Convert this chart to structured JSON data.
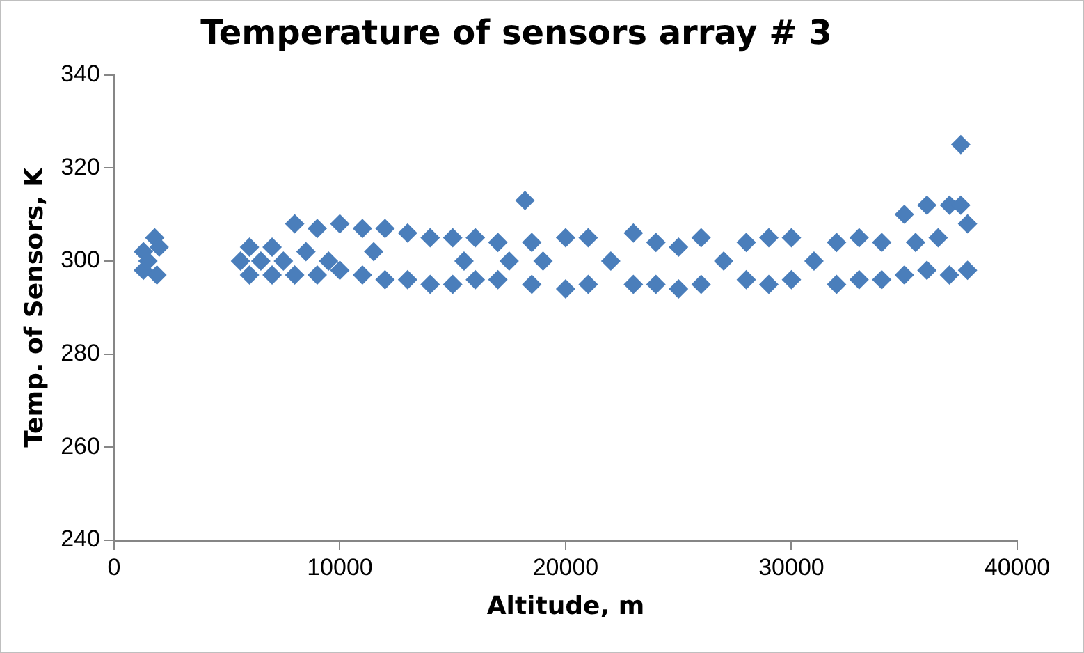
{
  "chart_data": {
    "type": "scatter",
    "title": "Temperature of sensors array # 3",
    "xlabel": "Altitude, m",
    "ylabel": "Temp. of Sensors, K",
    "xlim": [
      0,
      40000
    ],
    "xticks": [
      0,
      10000,
      20000,
      30000,
      40000
    ],
    "ylim": [
      240,
      340
    ],
    "yticks": [
      240,
      260,
      280,
      300,
      320,
      340
    ],
    "marker": "diamond",
    "legend": false,
    "series": [
      {
        "color": "#4a7ebb",
        "x": [
          1300,
          1300,
          1500,
          1800,
          1900,
          2000,
          5600,
          6000,
          6000,
          6500,
          7000,
          7000,
          7500,
          8000,
          8000,
          8500,
          9000,
          9000,
          9500,
          10000,
          10000,
          11000,
          11000,
          11500,
          12000,
          12000,
          13000,
          13000,
          14000,
          14000,
          15000,
          15000,
          15500,
          16000,
          16000,
          17000,
          17000,
          17500,
          18200,
          18500,
          18500,
          19000,
          20000,
          20000,
          21000,
          21000,
          22000,
          23000,
          23000,
          24000,
          24000,
          25000,
          25000,
          26000,
          26000,
          27000,
          28000,
          28000,
          29000,
          29000,
          30000,
          30000,
          31000,
          32000,
          32000,
          33000,
          33000,
          34000,
          34000,
          35000,
          35000,
          35500,
          36000,
          36000,
          36500,
          37000,
          37000,
          37500,
          37500,
          37800,
          37800
        ],
        "values": [
          302,
          298,
          300,
          305,
          297,
          303,
          300,
          303,
          297,
          300,
          303,
          297,
          300,
          308,
          297,
          302,
          307,
          297,
          300,
          308,
          298,
          307,
          297,
          302,
          307,
          296,
          306,
          296,
          305,
          295,
          305,
          295,
          300,
          305,
          296,
          304,
          296,
          300,
          313,
          304,
          295,
          300,
          305,
          294,
          305,
          295,
          300,
          306,
          295,
          304,
          295,
          303,
          294,
          305,
          295,
          300,
          304,
          296,
          305,
          295,
          305,
          296,
          300,
          304,
          295,
          305,
          296,
          304,
          296,
          310,
          297,
          304,
          312,
          298,
          305,
          312,
          297,
          325,
          312,
          308,
          298
        ]
      }
    ]
  }
}
